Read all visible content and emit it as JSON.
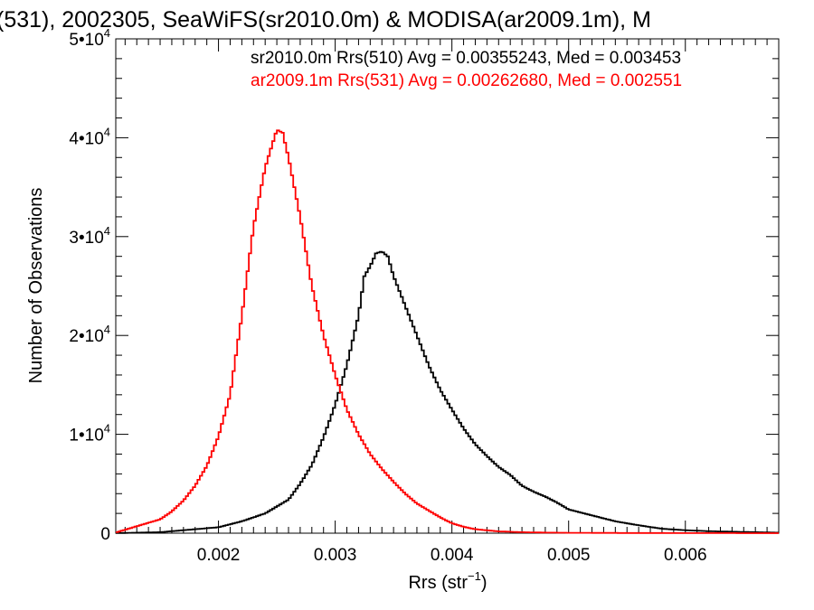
{
  "chart_data": {
    "type": "line",
    "title": "(531), 2002305, SeaWiFS(sr2010.0m) & MODISA(ar2009.1m), M",
    "xlabel": "Rrs (str",
    "xlabel_sup": "−1",
    "xlabel_close": ")",
    "ylabel": "Number of Observations",
    "xlim": [
      0.00112,
      0.0068
    ],
    "ylim": [
      0,
      50000
    ],
    "xticks": [
      {
        "value": 0.002,
        "label": "0.002"
      },
      {
        "value": 0.003,
        "label": "0.003"
      },
      {
        "value": 0.004,
        "label": "0.004"
      },
      {
        "value": 0.005,
        "label": "0.005"
      },
      {
        "value": 0.006,
        "label": "0.006"
      }
    ],
    "yticks": [
      {
        "value": 0,
        "mant": "0",
        "exp": ""
      },
      {
        "value": 10000,
        "mant": "1•10",
        "exp": "4"
      },
      {
        "value": 20000,
        "mant": "2•10",
        "exp": "4"
      },
      {
        "value": 30000,
        "mant": "3•10",
        "exp": "4"
      },
      {
        "value": 40000,
        "mant": "4•10",
        "exp": "4"
      },
      {
        "value": 50000,
        "mant": "5•10",
        "exp": "4"
      }
    ],
    "grid": false,
    "legend_position": "top-right",
    "legend": [
      "sr2010.0m Rrs(510) Avg = 0.00355243, Med = 0.003453",
      "ar2009.1m Rrs(531) Avg = 0.00262680, Med = 0.002551"
    ],
    "series": [
      {
        "color": "#000000",
        "x": [
          0.0011,
          0.0015,
          0.0018,
          0.002,
          0.0022,
          0.0024,
          0.0026,
          0.0027,
          0.0028,
          0.0029,
          0.003,
          0.0031,
          0.0032,
          0.00325,
          0.0033,
          0.00335,
          0.0034,
          0.00345,
          0.0035,
          0.0036,
          0.0037,
          0.0038,
          0.0039,
          0.004,
          0.0041,
          0.0042,
          0.0043,
          0.0044,
          0.0045,
          0.0046,
          0.0047,
          0.0048,
          0.0049,
          0.005,
          0.0052,
          0.0054,
          0.0056,
          0.0058,
          0.006,
          0.0062,
          0.0064,
          0.0066,
          0.0068
        ],
        "y": [
          0,
          100,
          400,
          600,
          1200,
          2000,
          3400,
          5000,
          6900,
          9700,
          13000,
          17000,
          22000,
          26000,
          27000,
          28300,
          28500,
          28000,
          26000,
          23000,
          20000,
          17000,
          14500,
          12500,
          10600,
          9000,
          7800,
          6700,
          5900,
          4800,
          4200,
          3700,
          3100,
          2400,
          1800,
          1200,
          800,
          450,
          300,
          200,
          150,
          100,
          50
        ]
      },
      {
        "color": "#ff0000",
        "x": [
          0.0011,
          0.0013,
          0.0015,
          0.0016,
          0.0017,
          0.0018,
          0.0019,
          0.002,
          0.0021,
          0.0022,
          0.0023,
          0.0024,
          0.0025,
          0.00255,
          0.0026,
          0.0027,
          0.0028,
          0.0029,
          0.003,
          0.0031,
          0.0032,
          0.0033,
          0.0034,
          0.0035,
          0.0036,
          0.0037,
          0.0038,
          0.0039,
          0.004,
          0.0041,
          0.0042,
          0.0044,
          0.0046,
          0.0048,
          0.005,
          0.0055,
          0.006,
          0.0068
        ],
        "y": [
          0,
          700,
          1400,
          2200,
          3300,
          4800,
          6800,
          9800,
          14000,
          22000,
          31000,
          37000,
          40800,
          40500,
          38000,
          32000,
          25000,
          20000,
          16000,
          12500,
          10000,
          8000,
          6500,
          5200,
          4000,
          3000,
          2300,
          1600,
          1000,
          650,
          400,
          180,
          100,
          60,
          40,
          20,
          10,
          0
        ]
      }
    ]
  }
}
